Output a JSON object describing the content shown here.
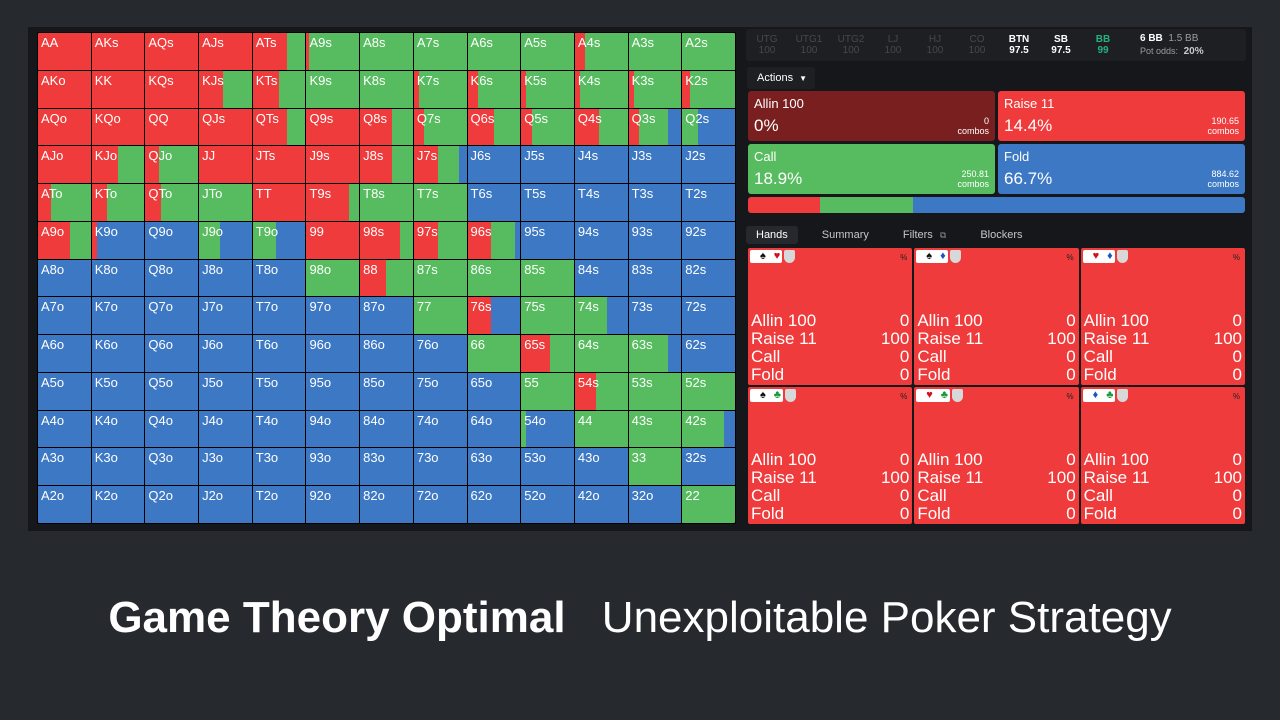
{
  "colors": {
    "raise": "#ef3b3b",
    "call": "#57bc5f",
    "fold": "#3d78c4",
    "allin": "#7a1f1f"
  },
  "grid": {
    "hands": [
      [
        "AA",
        "AKs",
        "AQs",
        "AJs",
        "ATs",
        "A9s",
        "A8s",
        "A7s",
        "A6s",
        "A5s",
        "A4s",
        "A3s",
        "A2s"
      ],
      [
        "AKo",
        "KK",
        "KQs",
        "KJs",
        "KTs",
        "K9s",
        "K8s",
        "K7s",
        "K6s",
        "K5s",
        "K4s",
        "K3s",
        "K2s"
      ],
      [
        "AQo",
        "KQo",
        "QQ",
        "QJs",
        "QTs",
        "Q9s",
        "Q8s",
        "Q7s",
        "Q6s",
        "Q5s",
        "Q4s",
        "Q3s",
        "Q2s"
      ],
      [
        "AJo",
        "KJo",
        "QJo",
        "JJ",
        "JTs",
        "J9s",
        "J8s",
        "J7s",
        "J6s",
        "J5s",
        "J4s",
        "J3s",
        "J2s"
      ],
      [
        "ATo",
        "KTo",
        "QTo",
        "JTo",
        "TT",
        "T9s",
        "T8s",
        "T7s",
        "T6s",
        "T5s",
        "T4s",
        "T3s",
        "T2s"
      ],
      [
        "A9o",
        "K9o",
        "Q9o",
        "J9o",
        "T9o",
        "99",
        "98s",
        "97s",
        "96s",
        "95s",
        "94s",
        "93s",
        "92s"
      ],
      [
        "A8o",
        "K8o",
        "Q8o",
        "J8o",
        "T8o",
        "98o",
        "88",
        "87s",
        "86s",
        "85s",
        "84s",
        "83s",
        "82s"
      ],
      [
        "A7o",
        "K7o",
        "Q7o",
        "J7o",
        "T7o",
        "97o",
        "87o",
        "77",
        "76s",
        "75s",
        "74s",
        "73s",
        "72s"
      ],
      [
        "A6o",
        "K6o",
        "Q6o",
        "J6o",
        "T6o",
        "96o",
        "86o",
        "76o",
        "66",
        "65s",
        "64s",
        "63s",
        "62s"
      ],
      [
        "A5o",
        "K5o",
        "Q5o",
        "J5o",
        "T5o",
        "95o",
        "85o",
        "75o",
        "65o",
        "55",
        "54s",
        "53s",
        "52s"
      ],
      [
        "A4o",
        "K4o",
        "Q4o",
        "J4o",
        "T4o",
        "94o",
        "84o",
        "74o",
        "64o",
        "54o",
        "44",
        "43s",
        "42s"
      ],
      [
        "A3o",
        "K3o",
        "Q3o",
        "J3o",
        "T3o",
        "93o",
        "83o",
        "73o",
        "63o",
        "53o",
        "43o",
        "33",
        "32s"
      ],
      [
        "A2o",
        "K2o",
        "Q2o",
        "J2o",
        "T2o",
        "92o",
        "82o",
        "72o",
        "62o",
        "52o",
        "42o",
        "32o",
        "22"
      ]
    ],
    "frequencies_raise_call_fold": [
      [
        [
          100,
          0,
          0
        ],
        [
          100,
          0,
          0
        ],
        [
          100,
          0,
          0
        ],
        [
          100,
          0,
          0
        ],
        [
          65,
          35,
          0
        ],
        [
          5,
          95,
          0
        ],
        [
          0,
          100,
          0
        ],
        [
          0,
          100,
          0
        ],
        [
          0,
          100,
          0
        ],
        [
          0,
          100,
          0
        ],
        [
          20,
          80,
          0
        ],
        [
          0,
          100,
          0
        ],
        [
          0,
          100,
          0
        ]
      ],
      [
        [
          100,
          0,
          0
        ],
        [
          100,
          0,
          0
        ],
        [
          100,
          0,
          0
        ],
        [
          45,
          55,
          0
        ],
        [
          50,
          50,
          0
        ],
        [
          0,
          100,
          0
        ],
        [
          0,
          100,
          0
        ],
        [
          10,
          90,
          0
        ],
        [
          20,
          80,
          0
        ],
        [
          10,
          90,
          0
        ],
        [
          10,
          90,
          0
        ],
        [
          10,
          90,
          0
        ],
        [
          15,
          85,
          0
        ]
      ],
      [
        [
          100,
          0,
          0
        ],
        [
          100,
          0,
          0
        ],
        [
          100,
          0,
          0
        ],
        [
          100,
          0,
          0
        ],
        [
          65,
          35,
          0
        ],
        [
          100,
          0,
          0
        ],
        [
          60,
          40,
          0
        ],
        [
          20,
          80,
          0
        ],
        [
          50,
          50,
          0
        ],
        [
          20,
          80,
          0
        ],
        [
          45,
          55,
          0
        ],
        [
          20,
          55,
          25
        ],
        [
          0,
          30,
          70
        ]
      ],
      [
        [
          100,
          0,
          0
        ],
        [
          50,
          50,
          0
        ],
        [
          25,
          75,
          0
        ],
        [
          100,
          0,
          0
        ],
        [
          100,
          0,
          0
        ],
        [
          100,
          0,
          0
        ],
        [
          60,
          40,
          0
        ],
        [
          45,
          40,
          15
        ],
        [
          0,
          0,
          100
        ],
        [
          0,
          0,
          100
        ],
        [
          0,
          0,
          100
        ],
        [
          0,
          0,
          100
        ],
        [
          0,
          0,
          100
        ]
      ],
      [
        [
          25,
          75,
          0
        ],
        [
          30,
          70,
          0
        ],
        [
          30,
          70,
          0
        ],
        [
          0,
          100,
          0
        ],
        [
          100,
          0,
          0
        ],
        [
          80,
          20,
          0
        ],
        [
          0,
          100,
          0
        ],
        [
          0,
          100,
          0
        ],
        [
          0,
          0,
          100
        ],
        [
          0,
          0,
          100
        ],
        [
          0,
          0,
          100
        ],
        [
          0,
          0,
          100
        ],
        [
          0,
          0,
          100
        ]
      ],
      [
        [
          60,
          40,
          0
        ],
        [
          10,
          0,
          90
        ],
        [
          0,
          0,
          100
        ],
        [
          0,
          40,
          60
        ],
        [
          0,
          45,
          55
        ],
        [
          100,
          0,
          0
        ],
        [
          75,
          25,
          0
        ],
        [
          45,
          55,
          0
        ],
        [
          45,
          45,
          10
        ],
        [
          0,
          0,
          100
        ],
        [
          0,
          0,
          100
        ],
        [
          0,
          0,
          100
        ],
        [
          0,
          0,
          100
        ]
      ],
      [
        [
          0,
          0,
          100
        ],
        [
          0,
          0,
          100
        ],
        [
          0,
          0,
          100
        ],
        [
          0,
          0,
          100
        ],
        [
          0,
          0,
          100
        ],
        [
          0,
          100,
          0
        ],
        [
          50,
          50,
          0
        ],
        [
          0,
          100,
          0
        ],
        [
          0,
          100,
          0
        ],
        [
          0,
          100,
          0
        ],
        [
          0,
          0,
          100
        ],
        [
          0,
          0,
          100
        ],
        [
          0,
          0,
          100
        ]
      ],
      [
        [
          0,
          0,
          100
        ],
        [
          0,
          0,
          100
        ],
        [
          0,
          0,
          100
        ],
        [
          0,
          0,
          100
        ],
        [
          0,
          0,
          100
        ],
        [
          0,
          0,
          100
        ],
        [
          0,
          0,
          100
        ],
        [
          0,
          100,
          0
        ],
        [
          45,
          0,
          55
        ],
        [
          0,
          100,
          0
        ],
        [
          0,
          60,
          40
        ],
        [
          0,
          0,
          100
        ],
        [
          0,
          0,
          100
        ]
      ],
      [
        [
          0,
          0,
          100
        ],
        [
          0,
          0,
          100
        ],
        [
          0,
          0,
          100
        ],
        [
          0,
          0,
          100
        ],
        [
          0,
          0,
          100
        ],
        [
          0,
          0,
          100
        ],
        [
          0,
          0,
          100
        ],
        [
          0,
          0,
          100
        ],
        [
          0,
          100,
          0
        ],
        [
          55,
          45,
          0
        ],
        [
          0,
          100,
          0
        ],
        [
          0,
          75,
          25
        ],
        [
          0,
          0,
          100
        ]
      ],
      [
        [
          0,
          0,
          100
        ],
        [
          0,
          0,
          100
        ],
        [
          0,
          0,
          100
        ],
        [
          0,
          0,
          100
        ],
        [
          0,
          0,
          100
        ],
        [
          0,
          0,
          100
        ],
        [
          0,
          0,
          100
        ],
        [
          0,
          0,
          100
        ],
        [
          0,
          0,
          100
        ],
        [
          0,
          100,
          0
        ],
        [
          40,
          60,
          0
        ],
        [
          0,
          100,
          0
        ],
        [
          0,
          100,
          0
        ]
      ],
      [
        [
          0,
          0,
          100
        ],
        [
          0,
          0,
          100
        ],
        [
          0,
          0,
          100
        ],
        [
          0,
          0,
          100
        ],
        [
          0,
          0,
          100
        ],
        [
          0,
          0,
          100
        ],
        [
          0,
          0,
          100
        ],
        [
          0,
          0,
          100
        ],
        [
          0,
          0,
          100
        ],
        [
          0,
          10,
          90
        ],
        [
          0,
          100,
          0
        ],
        [
          0,
          100,
          0
        ],
        [
          0,
          80,
          20
        ]
      ],
      [
        [
          0,
          0,
          100
        ],
        [
          0,
          0,
          100
        ],
        [
          0,
          0,
          100
        ],
        [
          0,
          0,
          100
        ],
        [
          0,
          0,
          100
        ],
        [
          0,
          0,
          100
        ],
        [
          0,
          0,
          100
        ],
        [
          0,
          0,
          100
        ],
        [
          0,
          0,
          100
        ],
        [
          0,
          0,
          100
        ],
        [
          0,
          0,
          100
        ],
        [
          0,
          100,
          0
        ],
        [
          0,
          0,
          100
        ]
      ],
      [
        [
          0,
          0,
          100
        ],
        [
          0,
          0,
          100
        ],
        [
          0,
          0,
          100
        ],
        [
          0,
          0,
          100
        ],
        [
          0,
          0,
          100
        ],
        [
          0,
          0,
          100
        ],
        [
          0,
          0,
          100
        ],
        [
          0,
          0,
          100
        ],
        [
          0,
          0,
          100
        ],
        [
          0,
          0,
          100
        ],
        [
          0,
          0,
          100
        ],
        [
          0,
          0,
          100
        ],
        [
          0,
          100,
          0
        ]
      ]
    ]
  },
  "positions": [
    {
      "name": "UTG",
      "stack": "100",
      "state": "inactive"
    },
    {
      "name": "UTG1",
      "stack": "100",
      "state": "inactive"
    },
    {
      "name": "UTG2",
      "stack": "100",
      "state": "inactive"
    },
    {
      "name": "LJ",
      "stack": "100",
      "state": "inactive"
    },
    {
      "name": "HJ",
      "stack": "100",
      "state": "inactive"
    },
    {
      "name": "CO",
      "stack": "100",
      "state": "inactive"
    },
    {
      "name": "BTN",
      "stack": "97.5",
      "state": "active"
    },
    {
      "name": "SB",
      "stack": "97.5",
      "state": "active"
    },
    {
      "name": "BB",
      "stack": "99",
      "state": "bb"
    }
  ],
  "stack_info": {
    "pot": "6 BB",
    "bet": "1.5 BB",
    "odds_label": "Pot odds:",
    "odds_value": "20%"
  },
  "actions_label": "Actions",
  "action_boxes": [
    {
      "name": "Allin 100",
      "pct": "0%",
      "combos": "0",
      "combos_label": "combos",
      "color": "#7a1f1f"
    },
    {
      "name": "Raise 11",
      "pct": "14.4%",
      "combos": "190.65",
      "combos_label": "combos",
      "color": "#ef3b3b"
    },
    {
      "name": "Call",
      "pct": "18.9%",
      "combos": "250.81",
      "combos_label": "combos",
      "color": "#57bc5f"
    },
    {
      "name": "Fold",
      "pct": "66.7%",
      "combos": "884.62",
      "combos_label": "combos",
      "color": "#3d78c4"
    }
  ],
  "freq_bar": {
    "raise": 14.4,
    "call": 18.9,
    "fold": 66.7
  },
  "tabs": [
    "Hands",
    "Summary",
    "Filters",
    "Blockers"
  ],
  "hand_cards": [
    {
      "c1": "A",
      "s1": "♠",
      "s1c": "blk-suit",
      "c2": "A",
      "s2": "♥",
      "s2c": "red-suit"
    },
    {
      "c1": "A",
      "s1": "♠",
      "s1c": "blk-suit",
      "c2": "A",
      "s2": "♦",
      "s2c": "blu-suit"
    },
    {
      "c1": "A",
      "s1": "♥",
      "s1c": "red-suit",
      "c2": "A",
      "s2": "♦",
      "s2c": "blu-suit"
    },
    {
      "c1": "A",
      "s1": "♠",
      "s1c": "blk-suit",
      "c2": "A",
      "s2": "♣",
      "s2c": "grn-suit"
    },
    {
      "c1": "A",
      "s1": "♥",
      "s1c": "red-suit",
      "c2": "A",
      "s2": "♣",
      "s2c": "grn-suit"
    },
    {
      "c1": "A",
      "s1": "♦",
      "s1c": "blu-suit",
      "c2": "A",
      "s2": "♣",
      "s2c": "grn-suit"
    }
  ],
  "hand_rows": [
    {
      "label": "Allin 100",
      "value": "0"
    },
    {
      "label": "Raise 11",
      "value": "100"
    },
    {
      "label": "Call",
      "value": "0"
    },
    {
      "label": "Fold",
      "value": "0"
    }
  ],
  "pct_symbol": "%",
  "caption": {
    "bold": "Game Theory Optimal",
    "regular": "Unexploitable Poker Strategy"
  }
}
